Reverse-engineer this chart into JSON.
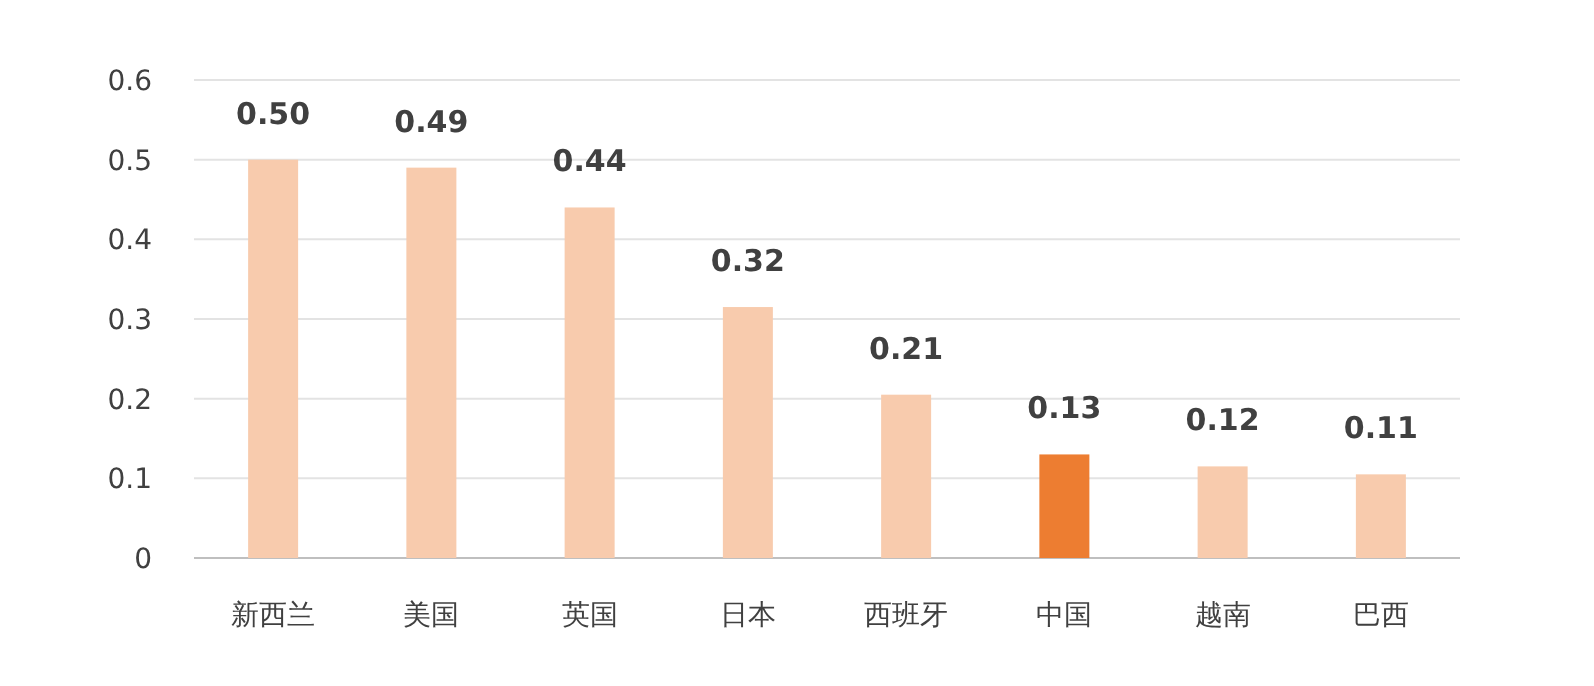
{
  "chart_data": {
    "type": "bar",
    "categories": [
      "新西兰",
      "美国",
      "英国",
      "日本",
      "西班牙",
      "中国",
      "越南",
      "巴西"
    ],
    "values": [
      0.5,
      0.49,
      0.44,
      0.315,
      0.205,
      0.13,
      0.115,
      0.105
    ],
    "value_labels": [
      "0.50",
      "0.49",
      "0.44",
      "0.32",
      "0.21",
      "0.13",
      "0.12",
      "0.11"
    ],
    "colors": [
      "#f8cbad",
      "#f8cbad",
      "#f8cbad",
      "#f8cbad",
      "#f8cbad",
      "#ed7d31",
      "#f8cbad",
      "#f8cbad"
    ],
    "ylim": [
      0,
      0.6
    ],
    "yticks": [
      0,
      0.1,
      0.2,
      0.3,
      0.4,
      0.5,
      0.6
    ],
    "grid": "y"
  }
}
